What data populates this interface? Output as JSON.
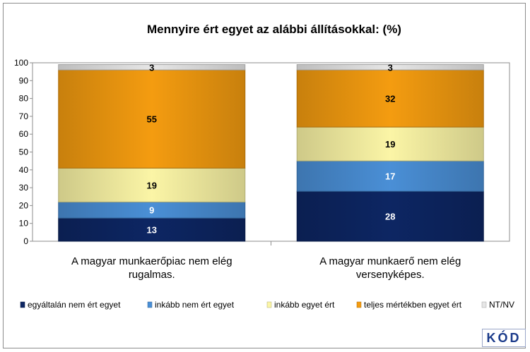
{
  "chart_data": {
    "type": "bar",
    "stacked": true,
    "title": "Mennyire ért egyet az alábbi állításokkal: (%)",
    "categories": [
      "A magyar munkaerőpiac nem elég rugalmas.",
      "A magyar munkaerő nem elég versenyképes."
    ],
    "category_lines": [
      [
        "A magyar munkaerőpiac nem elég",
        "rugalmas."
      ],
      [
        "A magyar munkaerő nem elég",
        "versenyképes."
      ]
    ],
    "y_ticks": [
      "0",
      "10",
      "20",
      "30",
      "40",
      "50",
      "60",
      "70",
      "80",
      "90",
      "100"
    ],
    "ylim": [
      0,
      100
    ],
    "grid": false,
    "legend_position": "bottom",
    "series": [
      {
        "name": "egyáltalán nem ért egyet",
        "values": [
          13,
          28
        ],
        "labels": [
          "13",
          "28"
        ],
        "color": "#0d2663",
        "label_color": "#ffffff"
      },
      {
        "name": "inkább nem ért egyet",
        "values": [
          9,
          17
        ],
        "labels": [
          "9",
          "17"
        ],
        "color": "#4a8fd6",
        "label_color": "#ffffff"
      },
      {
        "name": "inkább egyet ért",
        "values": [
          19,
          19
        ],
        "labels": [
          "19",
          "19"
        ],
        "color": "#fbf5a6",
        "label_color": "#000000"
      },
      {
        "name": "teljes mértékben egyet ért",
        "values": [
          55,
          32
        ],
        "labels": [
          "55",
          "32"
        ],
        "color": "#f49c10",
        "label_color": "#000000"
      },
      {
        "name": "NT/NV",
        "values": [
          3,
          3
        ],
        "labels": [
          "3",
          "3"
        ],
        "color": "#e6e6e6",
        "label_color": "#000000"
      }
    ]
  },
  "logo": {
    "text": "KÓD"
  }
}
